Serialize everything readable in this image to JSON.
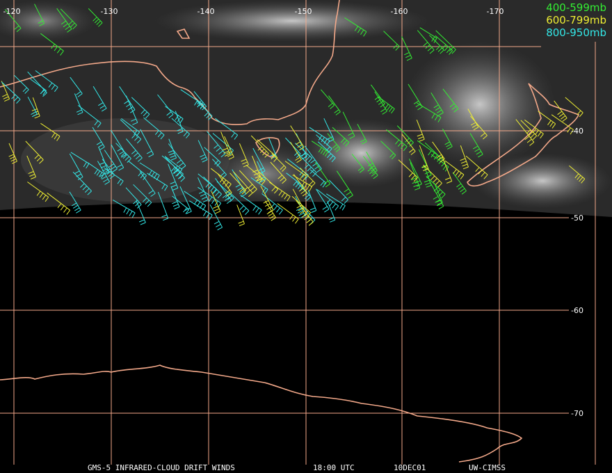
{
  "map": {
    "longitude_labels": [
      "-120",
      "-130",
      "-140",
      "-150",
      "-160",
      "-170"
    ],
    "latitude_labels": [
      "-40",
      "-50",
      "-60",
      "-70"
    ],
    "legend": [
      "400-599mb",
      "600-799mb",
      "800-950mb"
    ],
    "footer": {
      "product": "GMS-5 INFRARED-CLOUD DRIFT WINDS",
      "time": "18:00 UTC",
      "date": "10DEC01",
      "source": "UW-CIMSS"
    }
  }
}
